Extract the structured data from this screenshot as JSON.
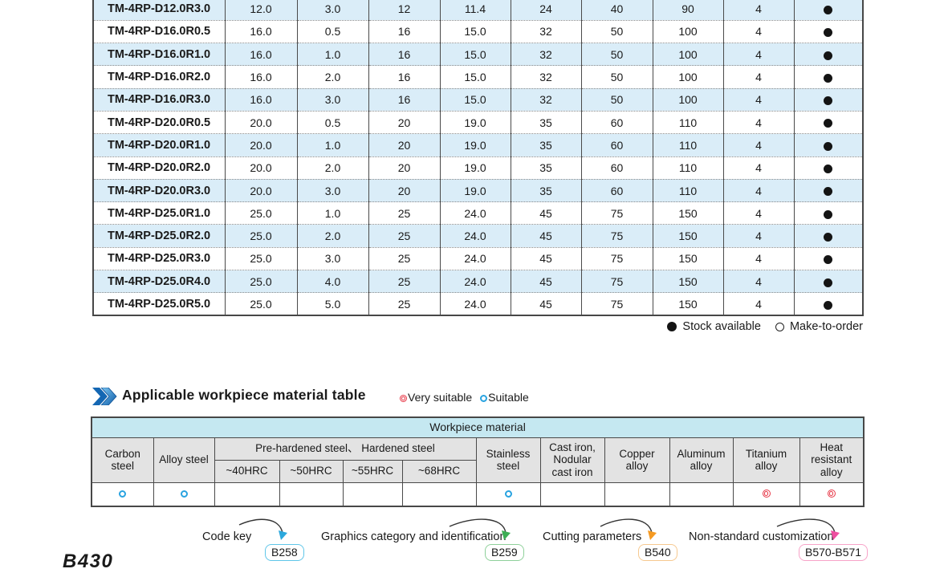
{
  "page": {
    "number": "B430"
  },
  "product_table": {
    "rows": [
      {
        "model": "TM-4RP-D12.0R3.0",
        "values": [
          "12.0",
          "3.0",
          "12",
          "11.4",
          "24",
          "40",
          "90",
          "4"
        ],
        "stock": "available"
      },
      {
        "model": "TM-4RP-D16.0R0.5",
        "values": [
          "16.0",
          "0.5",
          "16",
          "15.0",
          "32",
          "50",
          "100",
          "4"
        ],
        "stock": "available"
      },
      {
        "model": "TM-4RP-D16.0R1.0",
        "values": [
          "16.0",
          "1.0",
          "16",
          "15.0",
          "32",
          "50",
          "100",
          "4"
        ],
        "stock": "available"
      },
      {
        "model": "TM-4RP-D16.0R2.0",
        "values": [
          "16.0",
          "2.0",
          "16",
          "15.0",
          "32",
          "50",
          "100",
          "4"
        ],
        "stock": "available"
      },
      {
        "model": "TM-4RP-D16.0R3.0",
        "values": [
          "16.0",
          "3.0",
          "16",
          "15.0",
          "32",
          "50",
          "100",
          "4"
        ],
        "stock": "available"
      },
      {
        "model": "TM-4RP-D20.0R0.5",
        "values": [
          "20.0",
          "0.5",
          "20",
          "19.0",
          "35",
          "60",
          "110",
          "4"
        ],
        "stock": "available"
      },
      {
        "model": "TM-4RP-D20.0R1.0",
        "values": [
          "20.0",
          "1.0",
          "20",
          "19.0",
          "35",
          "60",
          "110",
          "4"
        ],
        "stock": "available"
      },
      {
        "model": "TM-4RP-D20.0R2.0",
        "values": [
          "20.0",
          "2.0",
          "20",
          "19.0",
          "35",
          "60",
          "110",
          "4"
        ],
        "stock": "available"
      },
      {
        "model": "TM-4RP-D20.0R3.0",
        "values": [
          "20.0",
          "3.0",
          "20",
          "19.0",
          "35",
          "60",
          "110",
          "4"
        ],
        "stock": "available"
      },
      {
        "model": "TM-4RP-D25.0R1.0",
        "values": [
          "25.0",
          "1.0",
          "25",
          "24.0",
          "45",
          "75",
          "150",
          "4"
        ],
        "stock": "available"
      },
      {
        "model": "TM-4RP-D25.0R2.0",
        "values": [
          "25.0",
          "2.0",
          "25",
          "24.0",
          "45",
          "75",
          "150",
          "4"
        ],
        "stock": "available"
      },
      {
        "model": "TM-4RP-D25.0R3.0",
        "values": [
          "25.0",
          "3.0",
          "25",
          "24.0",
          "45",
          "75",
          "150",
          "4"
        ],
        "stock": "available"
      },
      {
        "model": "TM-4RP-D25.0R4.0",
        "values": [
          "25.0",
          "4.0",
          "25",
          "24.0",
          "45",
          "75",
          "150",
          "4"
        ],
        "stock": "available"
      },
      {
        "model": "TM-4RP-D25.0R5.0",
        "values": [
          "25.0",
          "5.0",
          "25",
          "24.0",
          "45",
          "75",
          "150",
          "4"
        ],
        "stock": "available"
      }
    ],
    "legend": {
      "available_label": "Stock available",
      "make_to_order_label": "Make-to-order"
    }
  },
  "material_section": {
    "title": "Applicable workpiece material table",
    "legend": {
      "very_suitable": "Very suitable",
      "suitable": "Suitable"
    },
    "table": {
      "header": "Workpiece material",
      "columns": [
        {
          "label": "Carbon\nsteel"
        },
        {
          "label": "Alloy steel"
        },
        {
          "label": "Stainless\nsteel"
        },
        {
          "label": "Cast iron,\nNodular\ncast iron"
        },
        {
          "label": "Copper\nalloy"
        },
        {
          "label": "Aluminum\nalloy"
        },
        {
          "label": "Titanium\nalloy"
        },
        {
          "label": "Heat\nresistant\nalloy"
        }
      ],
      "group_label": "Pre-hardened steel、 Hardened steel",
      "sub_columns": [
        "~40HRC",
        "~50HRC",
        "~55HRC",
        "~68HRC"
      ],
      "ratings": [
        "suitable",
        "suitable",
        "",
        "",
        "",
        "",
        "suitable",
        "",
        "",
        "",
        "very_suitable",
        "very_suitable"
      ]
    }
  },
  "footer_links": [
    {
      "label": "Code key",
      "badge": "B258",
      "badge_border": "#5fc6e9",
      "arrow": "#2ba8dd"
    },
    {
      "label": "Graphics category and identification",
      "badge": "B259",
      "badge_border": "#8ed09a",
      "arrow": "#3cae54"
    },
    {
      "label": "Cutting parameters",
      "badge": "B540",
      "badge_border": "#f6c990",
      "arrow": "#f59a23"
    },
    {
      "label": "Non-standard customization",
      "badge": "B570-B571",
      "badge_border": "#f7a3c8",
      "arrow": "#ee4fa0"
    }
  ],
  "colors": {
    "row_alt": "#daedf8",
    "table_header_cyan": "#c5e8f1",
    "table_header_gray": "#e3e3e3",
    "suitable_blue": "#29a3e0",
    "very_suitable_red": "#e73746"
  }
}
